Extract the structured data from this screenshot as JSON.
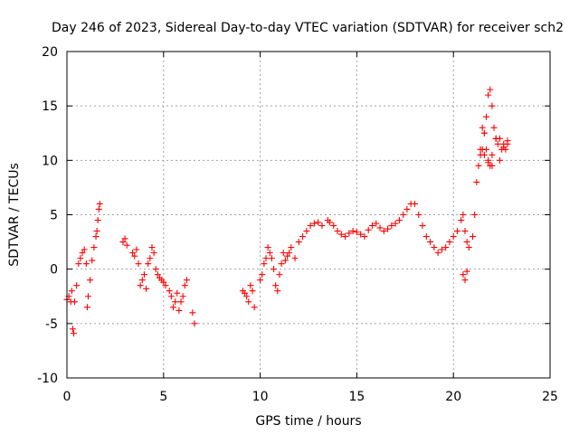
{
  "chart_data": {
    "type": "scatter",
    "title": "Day 246 of 2023, Sidereal Day-to-day VTEC variation (SDTVAR) for receiver sch2",
    "xlabel": "GPS time / hours",
    "ylabel": "SDTVAR / TECUs",
    "xlim": [
      0,
      25
    ],
    "ylim": [
      -10,
      20
    ],
    "xticks": [
      0,
      5,
      10,
      15,
      20,
      25
    ],
    "xtick_labels": [
      "0",
      "5",
      "10",
      "15",
      "20",
      "25"
    ],
    "yticks": [
      -10,
      -5,
      0,
      5,
      10,
      15,
      20
    ],
    "ytick_labels": [
      "-10",
      "-5",
      "0",
      "5",
      "10",
      "15",
      "20"
    ],
    "grid": true,
    "marker": "plus",
    "color": "#ff0000",
    "series": [
      {
        "name": "SDTVAR",
        "x": [
          0.0,
          0.1,
          0.2,
          0.25,
          0.3,
          0.35,
          0.4,
          0.5,
          0.6,
          0.7,
          0.8,
          0.9,
          1.0,
          1.05,
          1.1,
          1.2,
          1.3,
          1.4,
          1.5,
          1.55,
          1.6,
          1.65,
          1.7,
          2.9,
          3.0,
          3.1,
          3.4,
          3.5,
          3.6,
          3.7,
          3.8,
          3.9,
          4.0,
          4.1,
          4.2,
          4.3,
          4.4,
          4.5,
          4.6,
          4.7,
          4.8,
          4.9,
          5.0,
          5.1,
          5.3,
          5.4,
          5.5,
          5.6,
          5.7,
          5.8,
          5.9,
          6.0,
          6.1,
          6.2,
          6.5,
          6.6,
          9.1,
          9.2,
          9.3,
          9.4,
          9.5,
          9.6,
          9.7,
          10.0,
          10.1,
          10.2,
          10.3,
          10.4,
          10.5,
          10.6,
          10.7,
          10.8,
          10.9,
          11.0,
          11.1,
          11.2,
          11.3,
          11.4,
          11.5,
          11.6,
          11.8,
          12.0,
          12.2,
          12.4,
          12.6,
          12.8,
          13.0,
          13.2,
          13.5,
          13.6,
          13.8,
          14.0,
          14.2,
          14.4,
          14.6,
          14.8,
          15.0,
          15.2,
          15.4,
          15.6,
          15.8,
          16.0,
          16.2,
          16.4,
          16.6,
          16.8,
          17.0,
          17.2,
          17.4,
          17.6,
          17.8,
          18.0,
          18.2,
          18.4,
          18.6,
          18.8,
          19.0,
          19.2,
          19.4,
          19.6,
          19.8,
          20.0,
          20.2,
          20.4,
          20.5,
          20.6,
          20.7,
          20.8,
          20.5,
          20.6,
          20.7,
          21.0,
          21.1,
          21.2,
          21.3,
          21.4,
          21.5,
          21.6,
          21.7,
          21.8,
          21.9,
          22.0,
          22.1,
          22.2,
          22.3,
          22.4,
          22.5,
          22.6,
          22.7,
          22.8,
          21.5,
          21.6,
          21.7,
          21.8,
          21.9,
          22.0,
          22.2,
          22.4,
          22.6,
          22.8,
          21.4,
          21.6,
          21.8,
          22.0
        ],
        "y": [
          -2.8,
          -2.5,
          -3.0,
          -2.0,
          -5.5,
          -5.9,
          -3.0,
          -1.5,
          0.5,
          1.0,
          1.5,
          1.8,
          0.5,
          -3.5,
          -2.5,
          -1.0,
          0.8,
          2.0,
          3.0,
          3.5,
          4.5,
          5.5,
          6.0,
          2.5,
          2.8,
          2.2,
          1.5,
          1.2,
          1.8,
          0.5,
          -1.5,
          -1.0,
          -0.5,
          -1.8,
          0.5,
          1.0,
          2.0,
          1.5,
          0.0,
          -0.5,
          -0.8,
          -1.0,
          -1.2,
          -1.5,
          -2.0,
          -2.5,
          -3.5,
          -3.0,
          -2.2,
          -3.8,
          -3.0,
          -2.5,
          -1.5,
          -1.0,
          -4.0,
          -5.0,
          -2.0,
          -2.2,
          -2.5,
          -3.0,
          -1.5,
          -2.0,
          -3.5,
          -1.0,
          -0.5,
          0.5,
          1.0,
          2.0,
          1.5,
          1.0,
          0.0,
          -1.5,
          -2.0,
          -0.5,
          0.5,
          1.5,
          0.8,
          1.2,
          1.5,
          2.0,
          1.0,
          2.5,
          3.0,
          3.5,
          4.0,
          4.2,
          4.3,
          4.0,
          4.5,
          4.3,
          4.0,
          3.5,
          3.2,
          3.0,
          3.3,
          3.5,
          3.4,
          3.2,
          3.0,
          3.6,
          4.0,
          4.2,
          3.8,
          3.5,
          3.7,
          4.0,
          4.2,
          4.5,
          5.0,
          5.5,
          6.0,
          6.0,
          5.0,
          4.0,
          3.0,
          2.5,
          2.0,
          1.5,
          1.8,
          2.0,
          2.5,
          3.0,
          3.5,
          4.5,
          5.0,
          3.5,
          2.5,
          2.0,
          -0.5,
          -1.0,
          -0.2,
          3.0,
          5.0,
          8.0,
          9.5,
          10.5,
          11.0,
          12.5,
          14.0,
          16.0,
          16.5,
          15.0,
          13.0,
          12.0,
          11.5,
          12.0,
          11.0,
          11.5,
          11.0,
          11.5,
          13.0,
          12.5,
          11.0,
          10.0,
          9.5,
          10.5,
          12.0,
          10.0,
          11.2,
          11.8,
          11.0,
          10.5,
          9.8,
          9.5
        ]
      }
    ]
  }
}
